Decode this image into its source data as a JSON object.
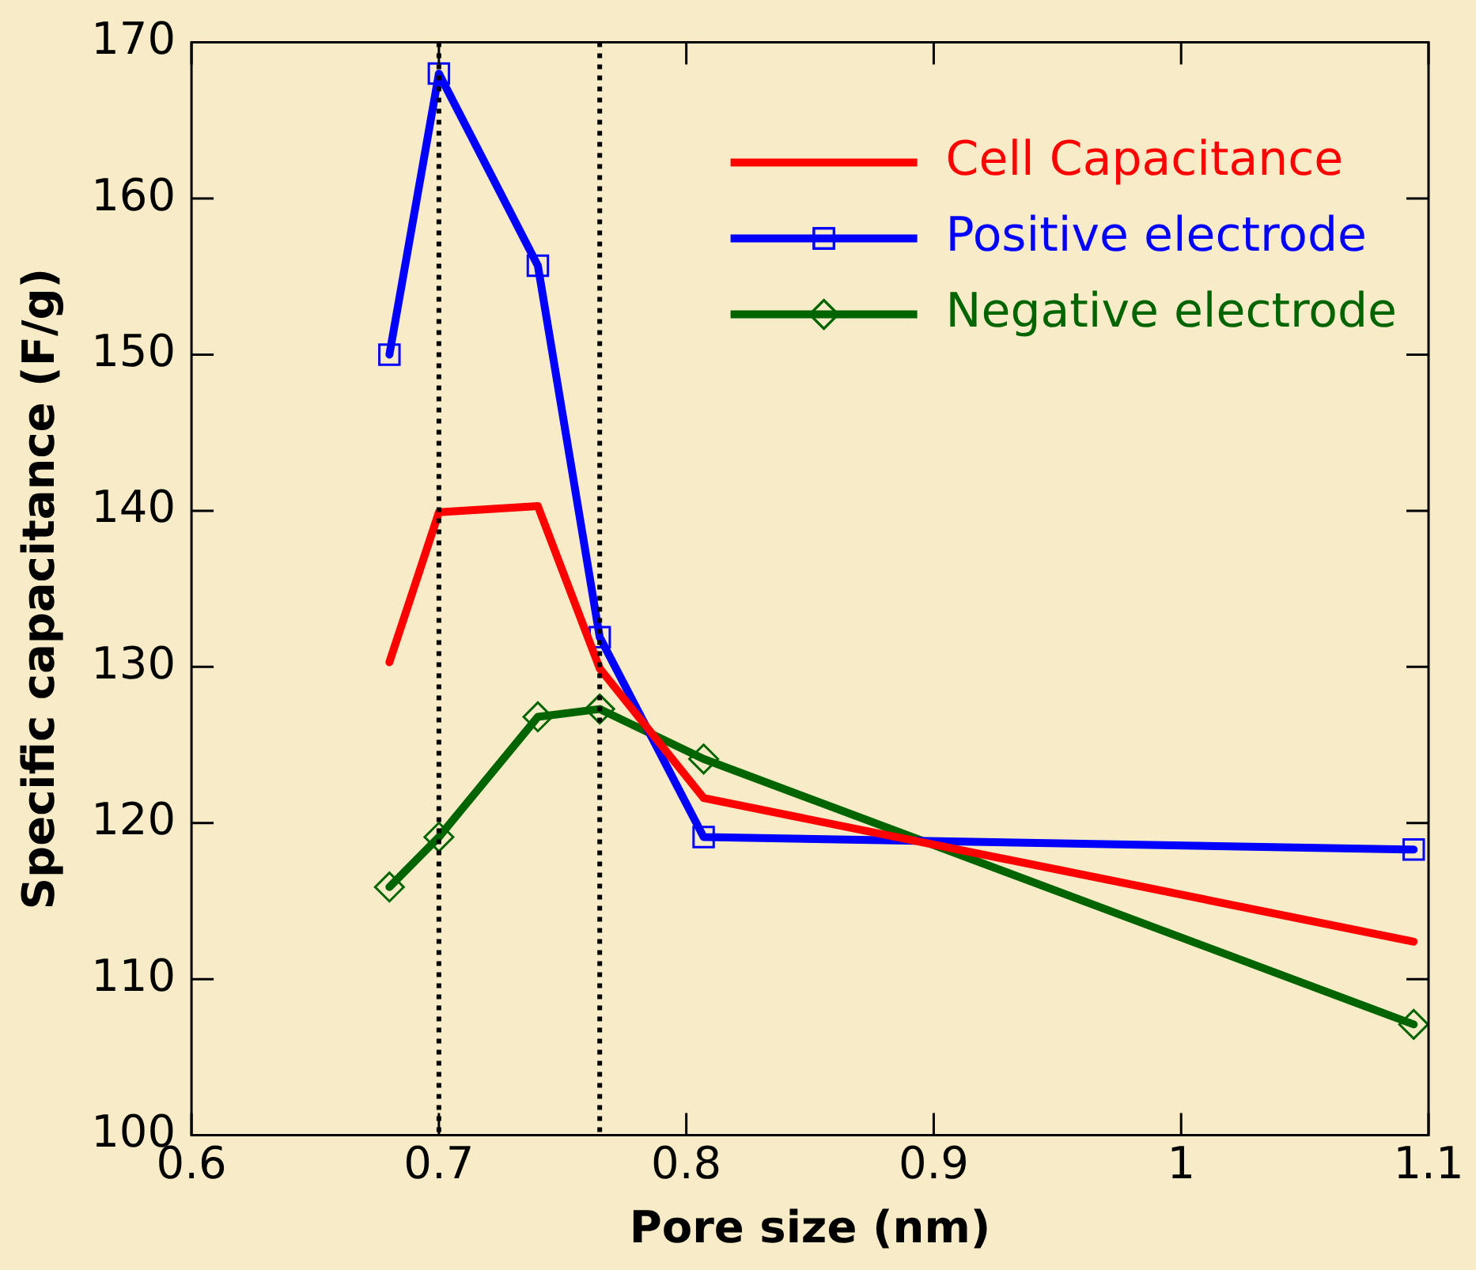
{
  "chart_data": {
    "type": "line",
    "xlabel": "Pore size (nm)",
    "ylabel": "Specific capacitance (F/g)",
    "xlim": [
      0.6,
      1.1
    ],
    "xticks": [
      0.6,
      0.7,
      0.8,
      0.9,
      1,
      1.1
    ],
    "ylim": [
      100,
      170
    ],
    "yticks": [
      100,
      110,
      120,
      130,
      140,
      150,
      160,
      170
    ],
    "grid": false,
    "legend": "top right",
    "line_style": "solid",
    "series": [
      {
        "name": "Cell Capacitance",
        "color": "#ff0000",
        "marker": "none",
        "x": [
          0.68,
          0.7,
          0.74,
          0.765,
          0.807,
          1.094
        ],
        "values": [
          130.3,
          139.9,
          140.3,
          129.9,
          121.6,
          112.4
        ]
      },
      {
        "name": "Positive electrode",
        "color": "#0000ff",
        "marker": "square",
        "x": [
          0.68,
          0.7,
          0.74,
          0.765,
          0.807,
          1.094
        ],
        "values": [
          150,
          168,
          155.7,
          131.9,
          119.1,
          118.3
        ]
      },
      {
        "name": "Negative electrode",
        "color": "#006400",
        "marker": "diamond",
        "x": [
          0.68,
          0.7,
          0.74,
          0.765,
          0.807,
          1.094
        ],
        "values": [
          115.9,
          119.1,
          126.8,
          127.3,
          124.1,
          107.1
        ]
      }
    ],
    "ref_lines": [
      {
        "axis": "x",
        "value": 0.7,
        "color": "#000000",
        "line_style": "dotted"
      },
      {
        "axis": "x",
        "value": 0.765,
        "color": "#000000",
        "line_style": "dotted"
      }
    ]
  }
}
